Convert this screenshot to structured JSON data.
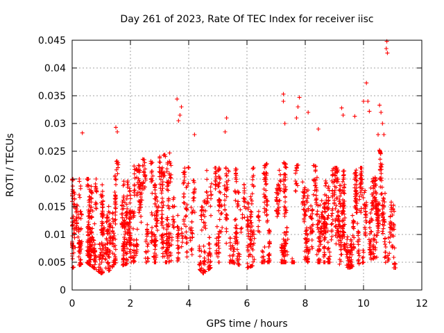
{
  "chart_data": {
    "type": "scatter",
    "title": "Day 261 of 2023, Rate Of TEC Index for receiver iisc",
    "xlabel": "GPS time / hours",
    "ylabel": "ROTI / TECUs",
    "xlim": [
      0,
      12
    ],
    "ylim": [
      0,
      0.045
    ],
    "xticks": [
      "0",
      "2",
      "4",
      "6",
      "8",
      "10",
      "12"
    ],
    "yticks": [
      "0",
      "0.005",
      "0.01",
      "0.015",
      "0.02",
      "0.025",
      "0.03",
      "0.035",
      "0.04",
      "0.045"
    ],
    "grid": true,
    "marker": "+",
    "series": [
      {
        "name": "ROTI",
        "color": "#ff0000",
        "x_range": [
          0,
          11.1
        ],
        "bulk_envelope": [
          [
            0.0,
            0.004,
            0.02
          ],
          [
            0.5,
            0.005,
            0.02
          ],
          [
            1.0,
            0.003,
            0.02
          ],
          [
            1.5,
            0.004,
            0.024
          ],
          [
            2.0,
            0.005,
            0.023
          ],
          [
            2.5,
            0.005,
            0.024
          ],
          [
            3.0,
            0.005,
            0.024
          ],
          [
            3.5,
            0.005,
            0.025
          ],
          [
            4.0,
            0.006,
            0.022
          ],
          [
            4.5,
            0.003,
            0.022
          ],
          [
            5.0,
            0.005,
            0.022
          ],
          [
            5.5,
            0.005,
            0.022
          ],
          [
            6.0,
            0.004,
            0.022
          ],
          [
            6.5,
            0.005,
            0.022
          ],
          [
            7.0,
            0.005,
            0.024
          ],
          [
            7.5,
            0.005,
            0.022
          ],
          [
            8.0,
            0.005,
            0.023
          ],
          [
            8.5,
            0.005,
            0.022
          ],
          [
            9.0,
            0.005,
            0.022
          ],
          [
            9.5,
            0.004,
            0.022
          ],
          [
            10.0,
            0.005,
            0.022
          ],
          [
            10.5,
            0.006,
            0.026
          ],
          [
            11.0,
            0.004,
            0.018
          ]
        ],
        "outliers": [
          [
            0.35,
            0.0283
          ],
          [
            1.5,
            0.0293
          ],
          [
            1.55,
            0.0285
          ],
          [
            3.6,
            0.0344
          ],
          [
            3.75,
            0.033
          ],
          [
            3.7,
            0.0315
          ],
          [
            3.65,
            0.0305
          ],
          [
            4.2,
            0.028
          ],
          [
            5.3,
            0.031
          ],
          [
            5.25,
            0.0285
          ],
          [
            7.25,
            0.0353
          ],
          [
            7.25,
            0.034
          ],
          [
            7.8,
            0.0347
          ],
          [
            7.75,
            0.033
          ],
          [
            7.7,
            0.031
          ],
          [
            7.3,
            0.03
          ],
          [
            8.1,
            0.032
          ],
          [
            8.45,
            0.029
          ],
          [
            9.25,
            0.0328
          ],
          [
            9.3,
            0.0315
          ],
          [
            9.7,
            0.0313
          ],
          [
            10.0,
            0.034
          ],
          [
            10.1,
            0.0373
          ],
          [
            10.15,
            0.034
          ],
          [
            10.2,
            0.0322
          ],
          [
            10.55,
            0.0333
          ],
          [
            10.6,
            0.032
          ],
          [
            10.65,
            0.03
          ],
          [
            10.7,
            0.028
          ],
          [
            10.5,
            0.028
          ],
          [
            10.8,
            0.0448
          ],
          [
            10.78,
            0.0435
          ],
          [
            10.82,
            0.0427
          ]
        ]
      }
    ]
  }
}
